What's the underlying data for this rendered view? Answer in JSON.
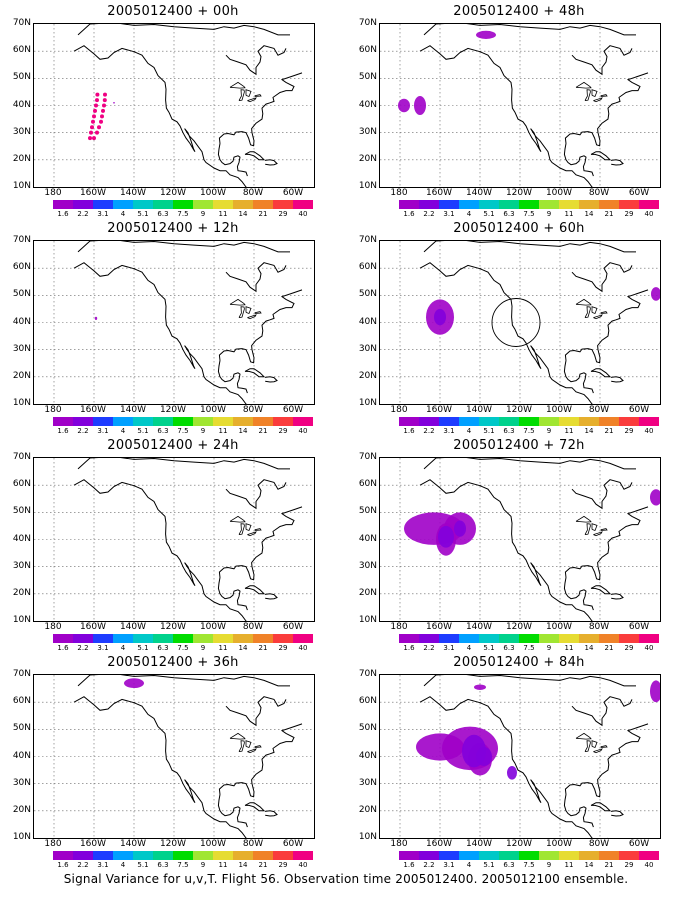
{
  "panels": [
    {
      "title": "2005012400 + 00h"
    },
    {
      "title": "2005012400 + 48h"
    },
    {
      "title": "2005012400 + 12h"
    },
    {
      "title": "2005012400 + 60h"
    },
    {
      "title": "2005012400 + 24h"
    },
    {
      "title": "2005012400 + 72h"
    },
    {
      "title": "2005012400 + 36h"
    },
    {
      "title": "2005012400 + 84h"
    }
  ],
  "lat_labels": [
    "70N",
    "60N",
    "50N",
    "40N",
    "30N",
    "20N",
    "10N"
  ],
  "lon_labels": [
    "180",
    "160W",
    "140W",
    "120W",
    "100W",
    "80W",
    "60W"
  ],
  "colorbar": {
    "labels": [
      "1.6",
      "2.2",
      "3.1",
      "4",
      "5.1",
      "6.3",
      "7.5",
      "9",
      "11",
      "14",
      "21",
      "29",
      "40"
    ],
    "colors": [
      "#a000c8",
      "#8200dc",
      "#1e3cff",
      "#00a0ff",
      "#00c8c8",
      "#00d28c",
      "#00dc00",
      "#a0e632",
      "#e6dc32",
      "#e6af2d",
      "#f08228",
      "#fa3c3c",
      "#f00082"
    ]
  },
  "caption": "Signal Variance for u,v,T. Flight 56. Observation time 2005012400. 2005012100 ensemble."
}
